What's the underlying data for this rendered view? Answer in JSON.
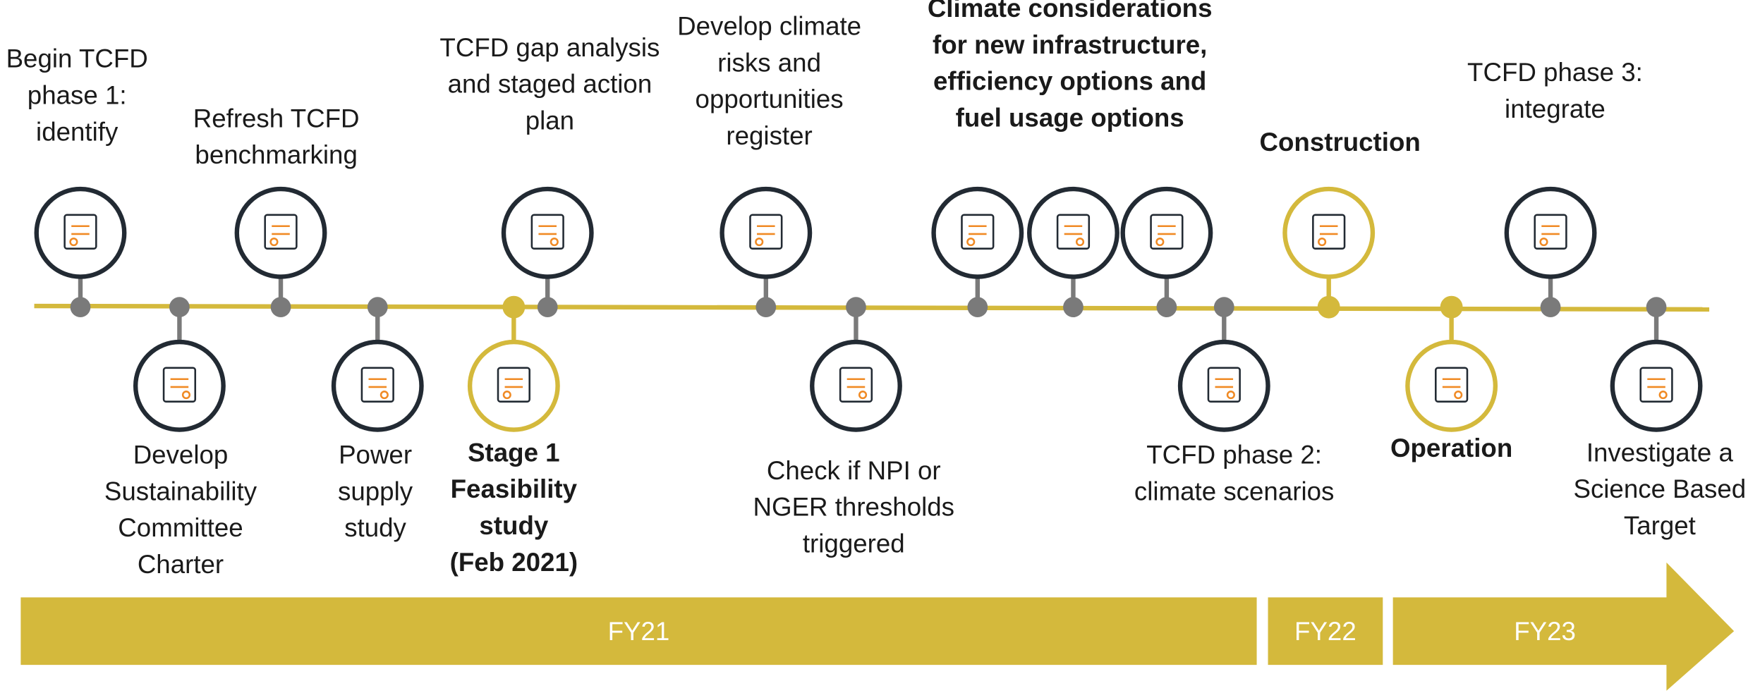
{
  "milestones": [
    {
      "lines": [
        "Begin TCFD",
        "phase 1:",
        "identify"
      ],
      "bold": false,
      "highlight": false
    },
    {
      "lines": [
        "Develop",
        "Sustainability",
        "Committee",
        "Charter"
      ],
      "bold": false,
      "highlight": false
    },
    {
      "lines": [
        "Refresh TCFD",
        "benchmarking"
      ],
      "bold": false,
      "highlight": false
    },
    {
      "lines": [
        "Power",
        "supply",
        "study"
      ],
      "bold": false,
      "highlight": false
    },
    {
      "lines": [
        "Stage 1",
        "Feasibility",
        "study",
        "(Feb 2021)"
      ],
      "bold": true,
      "highlight": true
    },
    {
      "lines": [
        "TCFD gap analysis",
        "and staged action",
        "plan"
      ],
      "bold": false,
      "highlight": false
    },
    {
      "lines": [
        "Develop climate",
        "risks and",
        "opportunities",
        "register"
      ],
      "bold": false,
      "highlight": false
    },
    {
      "lines": [
        "Check if NPI or",
        "NGER thresholds",
        "triggered"
      ],
      "bold": false,
      "highlight": false
    },
    {
      "lines": [
        "Climate considerations",
        "for new infrastructure,",
        "efficiency options and",
        "fuel usage options"
      ],
      "bold": true,
      "highlight": false
    },
    {
      "lines": [
        "TCFD phase 2:",
        "climate scenarios"
      ],
      "bold": false,
      "highlight": false
    },
    {
      "lines": [
        "Construction"
      ],
      "bold": true,
      "highlight": true
    },
    {
      "lines": [
        "Operation"
      ],
      "bold": true,
      "highlight": true
    },
    {
      "lines": [
        "TCFD phase 3:",
        "integrate"
      ],
      "bold": false,
      "highlight": false
    },
    {
      "lines": [
        "Investigate a",
        "Science Based",
        "Target"
      ],
      "bold": false,
      "highlight": false
    }
  ],
  "periods": [
    "FY21",
    "FY22",
    "FY23"
  ]
}
